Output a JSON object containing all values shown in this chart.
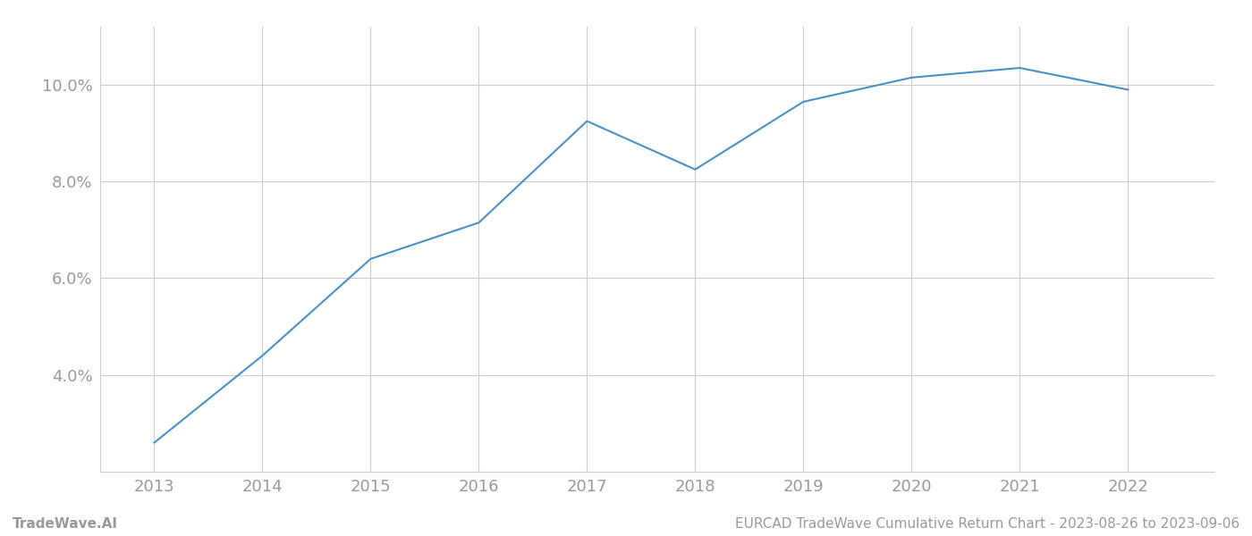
{
  "x": [
    2013,
    2014,
    2015,
    2016,
    2017,
    2018,
    2019,
    2020,
    2021,
    2022
  ],
  "y": [
    2.6,
    4.4,
    6.4,
    7.15,
    9.25,
    8.25,
    9.65,
    10.15,
    10.35,
    9.9
  ],
  "line_color": "#4a90c4",
  "line_width": 1.5,
  "background_color": "#ffffff",
  "grid_color": "#cccccc",
  "yticks": [
    4.0,
    6.0,
    8.0,
    10.0
  ],
  "ytick_labels": [
    "4.0%",
    "6.0%",
    "8.0%",
    "10.0%"
  ],
  "xticks": [
    2013,
    2014,
    2015,
    2016,
    2017,
    2018,
    2019,
    2020,
    2021,
    2022
  ],
  "xlim": [
    2012.5,
    2022.8
  ],
  "ylim": [
    2.0,
    11.2
  ],
  "footer_left": "TradeWave.AI",
  "footer_right": "EURCAD TradeWave Cumulative Return Chart - 2023-08-26 to 2023-09-06",
  "tick_color": "#999999",
  "tick_fontsize": 13,
  "footer_fontsize": 11,
  "spine_color": "#cccccc"
}
